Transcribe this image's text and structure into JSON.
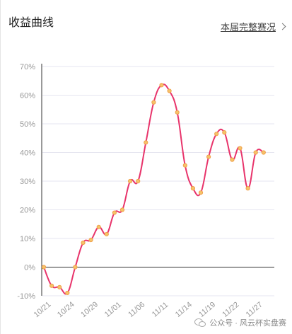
{
  "header": {
    "title": "收益曲线",
    "report_link": "本届完整赛况"
  },
  "watermark": {
    "icon": "wechat-icon",
    "text": "公众号 · 风云杯实盘赛"
  },
  "colors": {
    "line": "#e8346b",
    "point_fill": "#f5c36a",
    "point_stroke": "#f0a04a",
    "grid": "#e6e6f0"
  },
  "chart_data": {
    "type": "line",
    "title": "收益曲线",
    "xlabel": "",
    "ylabel": "",
    "ylim": [
      -10,
      70
    ],
    "y_ticks": [
      -10,
      0,
      10,
      20,
      30,
      40,
      50,
      60,
      70
    ],
    "y_tick_labels": [
      "-10%",
      "0%",
      "10%",
      "20%",
      "30%",
      "40%",
      "50%",
      "60%",
      "70%"
    ],
    "x_tick_labels": [
      {
        "label": "10/21",
        "index": 0
      },
      {
        "label": "10/24",
        "index": 3
      },
      {
        "label": "10/29",
        "index": 6
      },
      {
        "label": "11/01",
        "index": 9
      },
      {
        "label": "11/06",
        "index": 12
      },
      {
        "label": "11/11",
        "index": 15
      },
      {
        "label": "11/14",
        "index": 18
      },
      {
        "label": "11/19",
        "index": 21
      },
      {
        "label": "11/22",
        "index": 24
      },
      {
        "label": "11/27",
        "index": 27
      }
    ],
    "grid": true,
    "series": [
      {
        "values": [
          0,
          -6.5,
          -7,
          -9,
          0,
          8.5,
          9.5,
          14,
          11.5,
          19,
          20,
          30,
          30,
          43.5,
          57.5,
          63.5,
          61.5,
          54,
          35.5,
          27.5,
          26,
          38.5,
          46.5,
          47,
          37.5,
          41.5,
          27.5,
          40,
          40
        ]
      }
    ]
  }
}
